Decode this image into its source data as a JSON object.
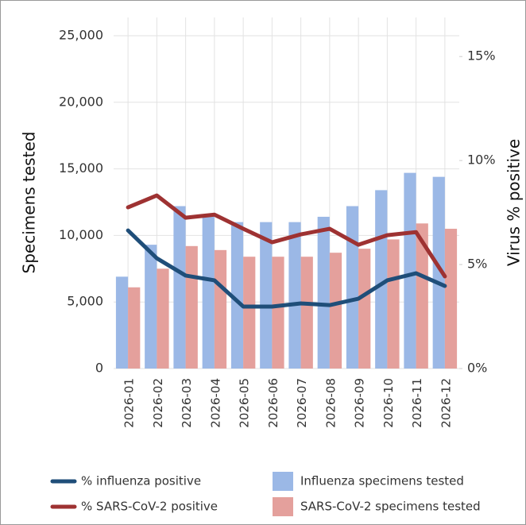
{
  "chart_data": {
    "type": "bar-line",
    "y_label": "Specimens tested",
    "y2_label": "Virus % positive",
    "categories": [
      "2026-01",
      "2026-02",
      "2026-03",
      "2026-04",
      "2026-05",
      "2026-06",
      "2026-07",
      "2026-08",
      "2026-09",
      "2026-10",
      "2026-11",
      "2026-12"
    ],
    "ylim": [
      0,
      25000
    ],
    "yticks": [
      0,
      {
        "value": 5000,
        "label": "5,000"
      },
      {
        "value": 10000,
        "label": "10,000"
      },
      {
        "value": 15000,
        "label": "15,000"
      },
      {
        "value": 20000,
        "label": "20,000"
      },
      {
        "value": 25000,
        "label": "25,000"
      }
    ],
    "y2lim": [
      0,
      16
    ],
    "y2ticks": [
      {
        "value": 0,
        "label": "0%"
      },
      {
        "value": 5,
        "label": "5%"
      },
      {
        "value": 10,
        "label": "10%"
      },
      {
        "value": 15,
        "label": "15%"
      }
    ],
    "grid": true,
    "series": [
      {
        "name": "Influenza specimens tested",
        "kind": "bar",
        "color": "#9bb8e6",
        "values": [
          6900,
          9300,
          12200,
          11500,
          11000,
          11000,
          11000,
          11400,
          12200,
          13400,
          14700,
          14400
        ]
      },
      {
        "name": "SARS-CoV-2 specimens tested",
        "kind": "bar",
        "color": "#e4a09c",
        "values": [
          6100,
          7500,
          9200,
          8900,
          8400,
          8400,
          8400,
          8700,
          9000,
          9700,
          10900,
          10500
        ]
      },
      {
        "name": "% influenza positive",
        "kind": "line",
        "axis": "y2",
        "color": "#1f4e79",
        "values": [
          6.64,
          5.3,
          4.47,
          4.24,
          2.98,
          2.98,
          3.13,
          3.05,
          3.36,
          4.24,
          4.58,
          3.97
        ]
      },
      {
        "name": "% SARS-CoV-2 positive",
        "kind": "line",
        "axis": "y2",
        "color": "#9e3232",
        "values": [
          7.75,
          8.32,
          7.25,
          7.4,
          6.72,
          6.07,
          6.45,
          6.72,
          5.95,
          6.41,
          6.56,
          4.43
        ]
      }
    ]
  }
}
